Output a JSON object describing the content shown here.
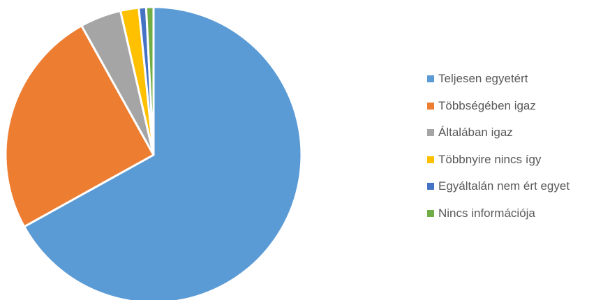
{
  "chart_data": {
    "type": "pie",
    "title": "",
    "categories": [
      "Teljesen egyetért",
      "Többségében igaz",
      "Általában igaz",
      "Többnyire nincs így",
      "Egyáltalán nem ért egyet",
      "Nincs információja"
    ],
    "values": [
      67,
      25,
      4.5,
      2,
      0.8,
      0.8
    ],
    "unit": "%",
    "colors": [
      "#5B9BD5",
      "#ED7D31",
      "#A5A5A5",
      "#FFC000",
      "#4472C4",
      "#70AD47"
    ],
    "legend": "right",
    "start_angle": "top (12 o'clock), clockwise"
  }
}
